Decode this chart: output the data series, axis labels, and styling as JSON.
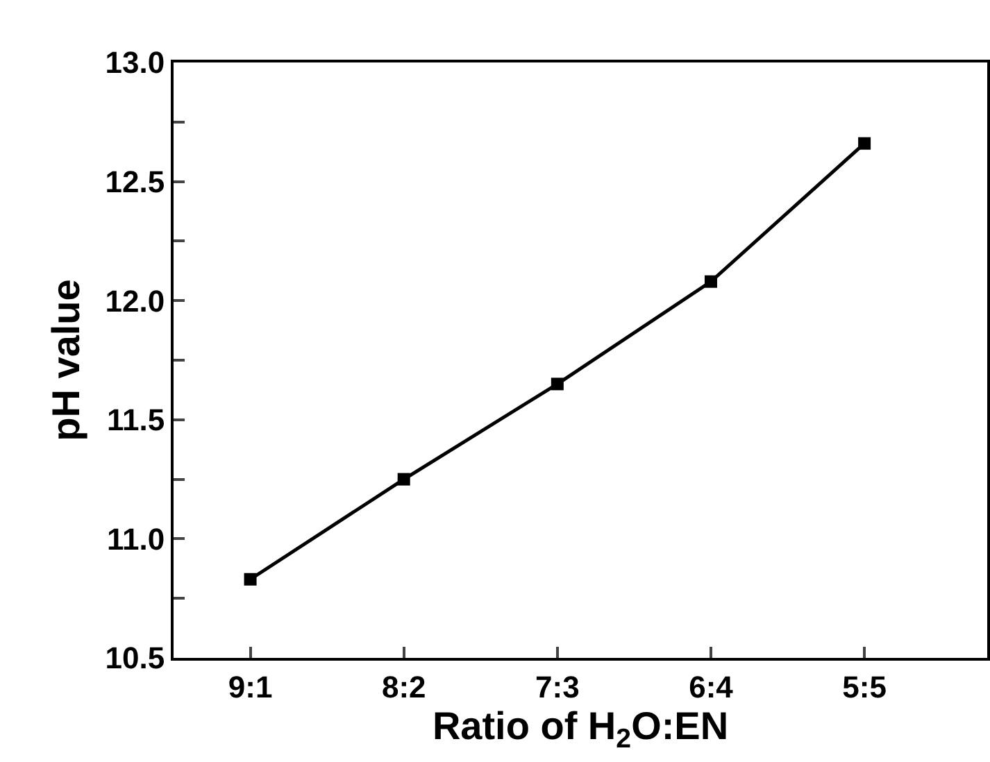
{
  "chart_data": {
    "type": "line",
    "xlabel": "Ratio of H$_{2}$O:EN",
    "ylabel": "pH value",
    "categories": [
      "9:1",
      "8:2",
      "7:3",
      "6:4",
      "5:5"
    ],
    "series": [
      {
        "color": "#000000",
        "values": [
          10.83,
          11.25,
          11.65,
          12.08,
          12.66
        ]
      }
    ],
    "ylim": [
      10.5,
      13.0
    ],
    "yticks": [
      {
        "value": 10.5,
        "label": "10.5"
      },
      {
        "value": 10.75,
        "label": null
      },
      {
        "value": 11.0,
        "label": "11.0"
      },
      {
        "value": 11.25,
        "label": null
      },
      {
        "value": 11.5,
        "label": "11.5"
      },
      {
        "value": 11.75,
        "label": null
      },
      {
        "value": 12.0,
        "label": "12.0"
      },
      {
        "value": 12.25,
        "label": null
      },
      {
        "value": 12.5,
        "label": "12.5"
      },
      {
        "value": 12.75,
        "label": null
      },
      {
        "value": 13.0,
        "label": "13.0"
      }
    ],
    "marker": "square",
    "line_style": "solid"
  }
}
